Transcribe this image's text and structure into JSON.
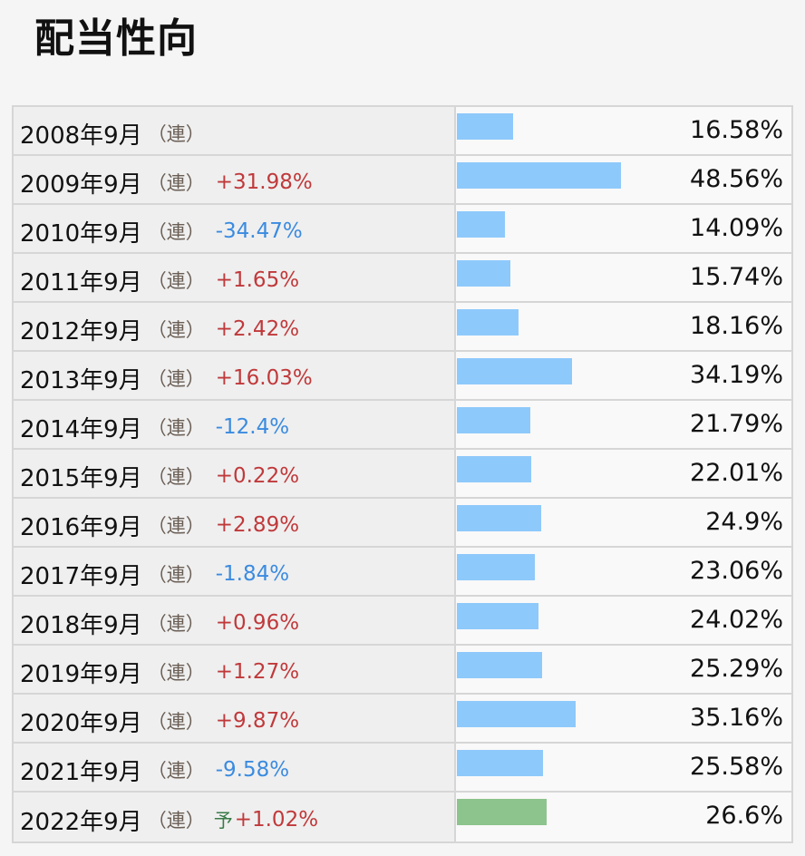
{
  "title": "配当性向",
  "chart_data": {
    "type": "bar",
    "title": "配当性向",
    "unit": "%",
    "rows": [
      {
        "period": "2008年9月",
        "kind": "（連）",
        "forecast": "",
        "change": "",
        "value": 16.58,
        "value_label": "16.58%"
      },
      {
        "period": "2009年9月",
        "kind": "（連）",
        "forecast": "",
        "change": "+31.98%",
        "value": 48.56,
        "value_label": "48.56%"
      },
      {
        "period": "2010年9月",
        "kind": "（連）",
        "forecast": "",
        "change": "-34.47%",
        "value": 14.09,
        "value_label": "14.09%"
      },
      {
        "period": "2011年9月",
        "kind": "（連）",
        "forecast": "",
        "change": "+1.65%",
        "value": 15.74,
        "value_label": "15.74%"
      },
      {
        "period": "2012年9月",
        "kind": "（連）",
        "forecast": "",
        "change": "+2.42%",
        "value": 18.16,
        "value_label": "18.16%"
      },
      {
        "period": "2013年9月",
        "kind": "（連）",
        "forecast": "",
        "change": "+16.03%",
        "value": 34.19,
        "value_label": "34.19%"
      },
      {
        "period": "2014年9月",
        "kind": "（連）",
        "forecast": "",
        "change": "-12.4%",
        "value": 21.79,
        "value_label": "21.79%"
      },
      {
        "period": "2015年9月",
        "kind": "（連）",
        "forecast": "",
        "change": "+0.22%",
        "value": 22.01,
        "value_label": "22.01%"
      },
      {
        "period": "2016年9月",
        "kind": "（連）",
        "forecast": "",
        "change": "+2.89%",
        "value": 24.9,
        "value_label": "24.9%"
      },
      {
        "period": "2017年9月",
        "kind": "（連）",
        "forecast": "",
        "change": "-1.84%",
        "value": 23.06,
        "value_label": "23.06%"
      },
      {
        "period": "2018年9月",
        "kind": "（連）",
        "forecast": "",
        "change": "+0.96%",
        "value": 24.02,
        "value_label": "24.02%"
      },
      {
        "period": "2019年9月",
        "kind": "（連）",
        "forecast": "",
        "change": "+1.27%",
        "value": 25.29,
        "value_label": "25.29%"
      },
      {
        "period": "2020年9月",
        "kind": "（連）",
        "forecast": "",
        "change": "+9.87%",
        "value": 35.16,
        "value_label": "35.16%"
      },
      {
        "period": "2021年9月",
        "kind": "（連）",
        "forecast": "",
        "change": "-9.58%",
        "value": 25.58,
        "value_label": "25.58%"
      },
      {
        "period": "2022年9月",
        "kind": "（連）",
        "forecast": "予",
        "change": "+1.02%",
        "value": 26.6,
        "value_label": "26.6%"
      }
    ],
    "colors": {
      "bar": "#8ec9fb",
      "forecast_bar": "#8dc38c",
      "positive": "#c0393b",
      "negative": "#3b8be0"
    },
    "grid": false
  }
}
